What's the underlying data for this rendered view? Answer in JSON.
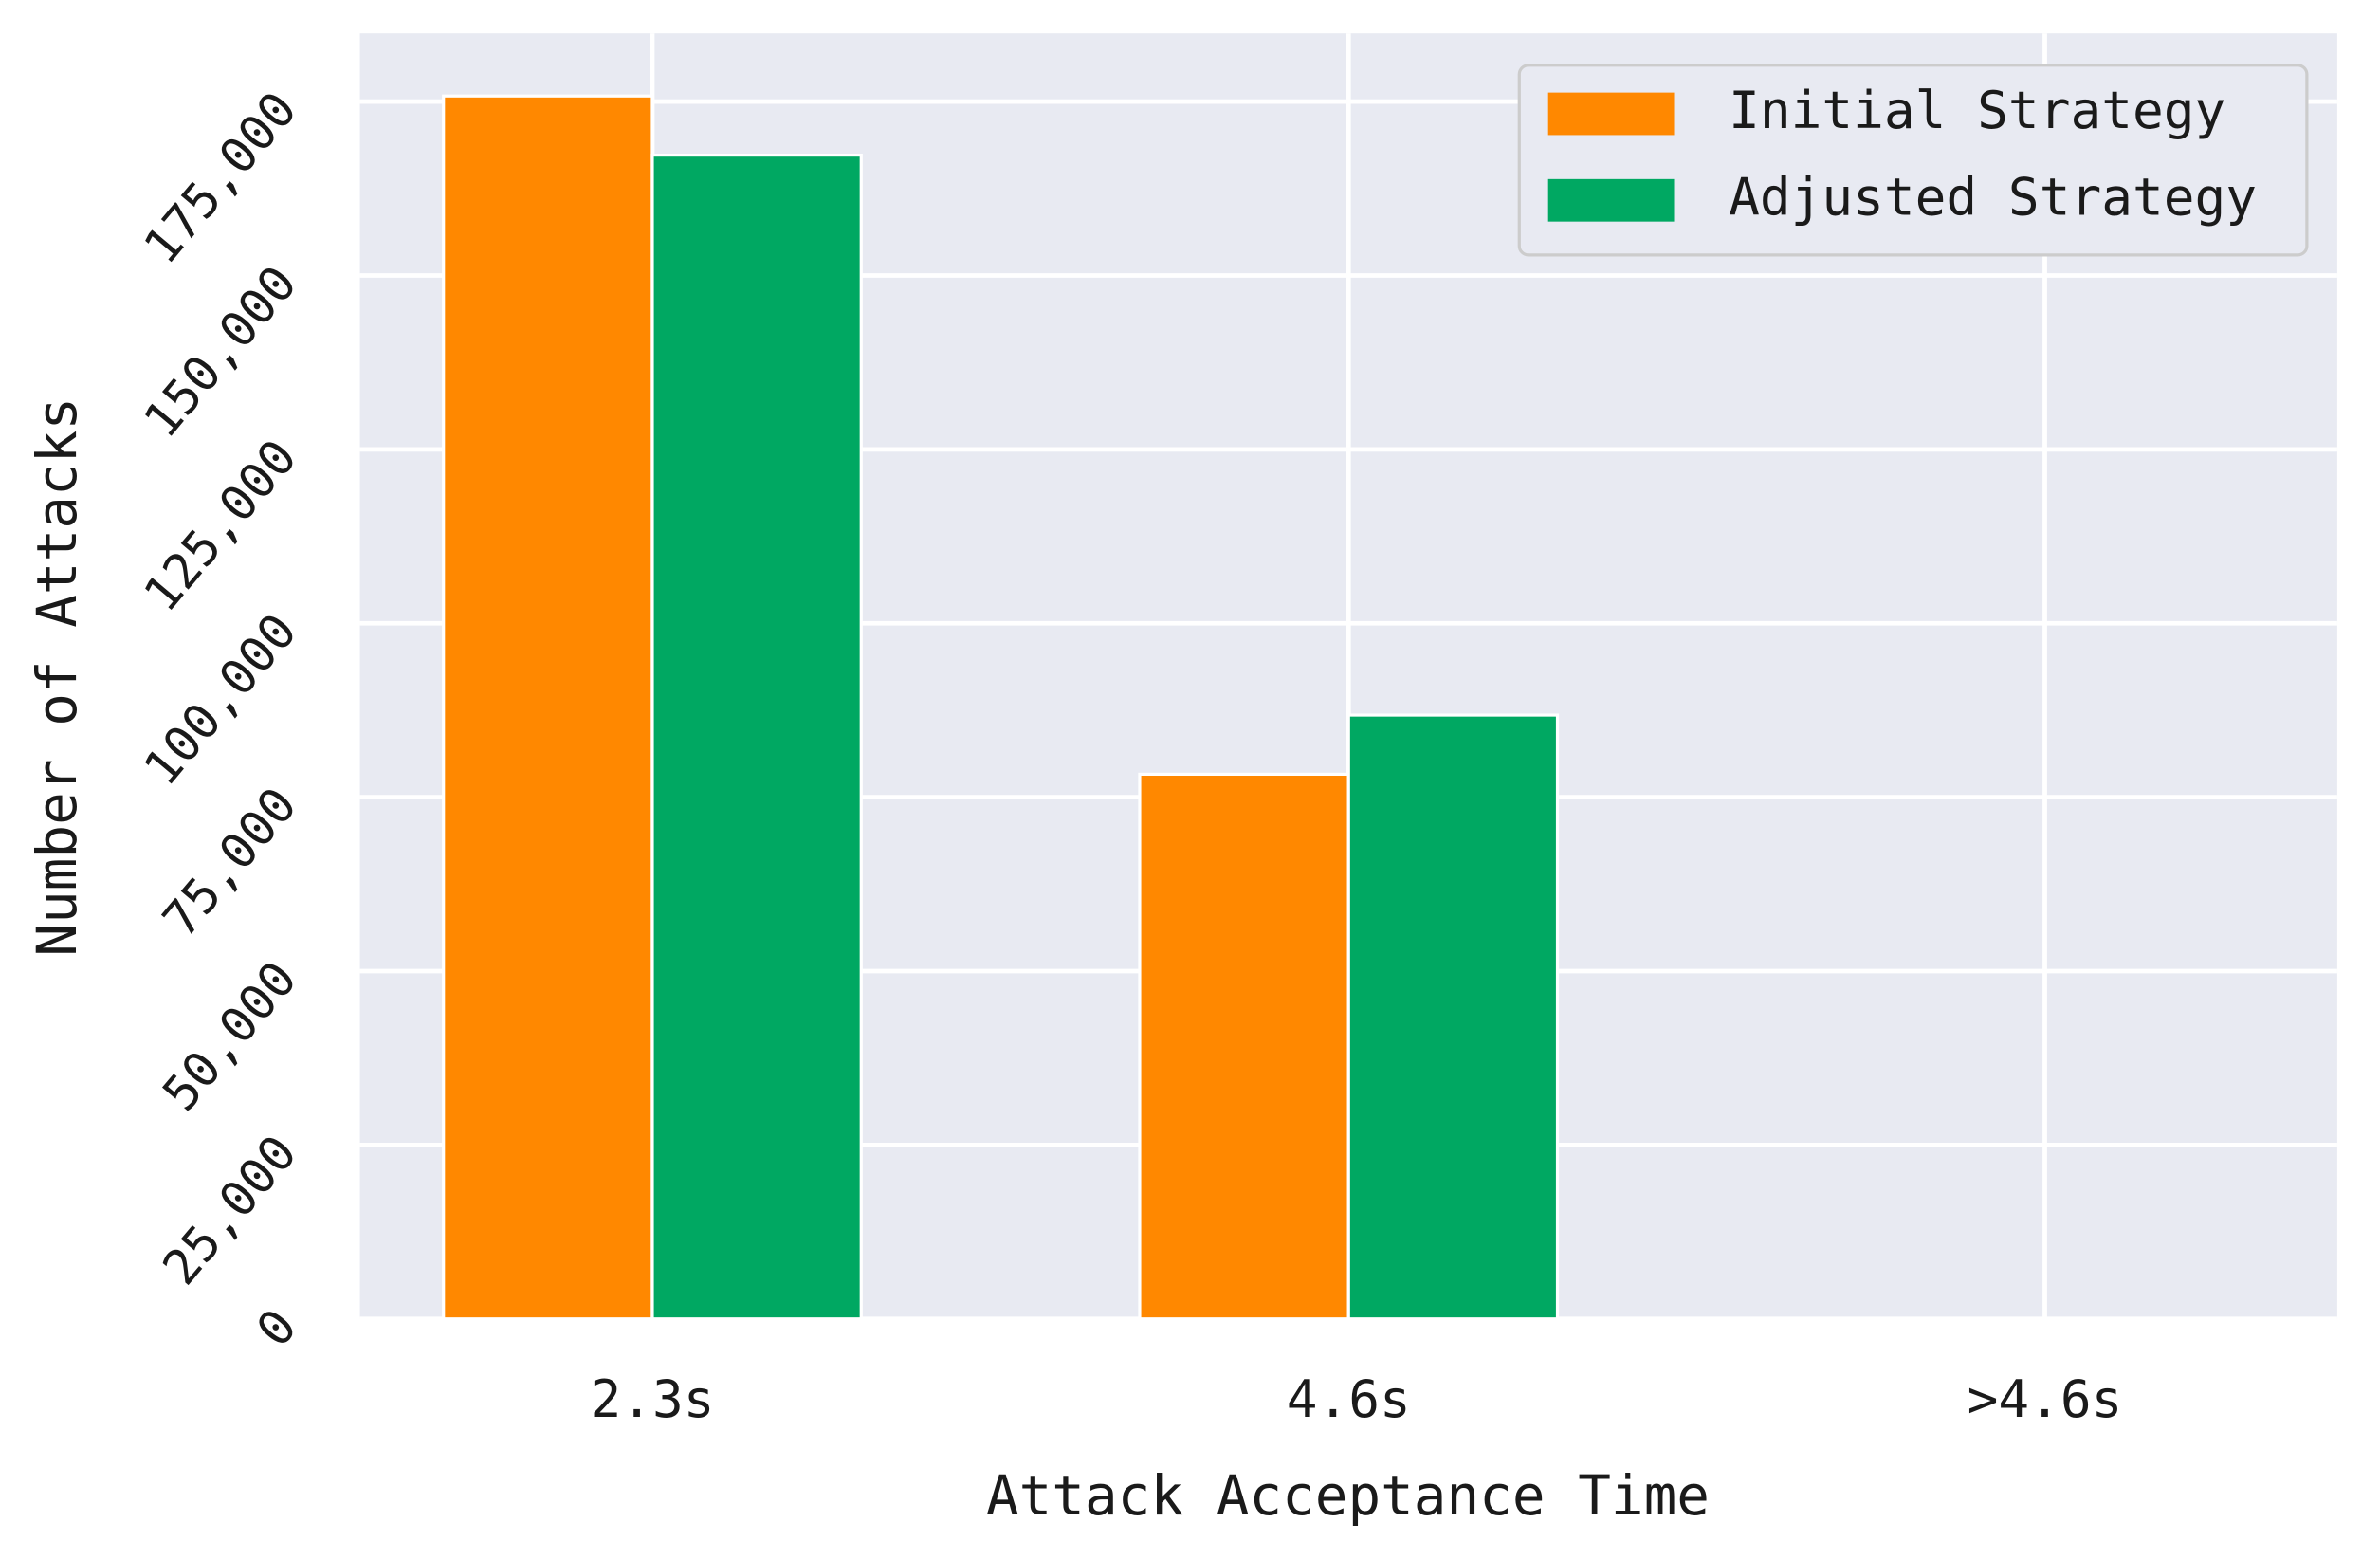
{
  "chart_data": {
    "type": "bar",
    "xlabel": "Attack Acceptance Time",
    "ylabel": "Number of Attacks",
    "categories": [
      "2.3s",
      "4.6s",
      ">4.6s"
    ],
    "series": [
      {
        "name": "Initial Strategy",
        "color": "#ff8800",
        "values": [
          175800,
          78300,
          0
        ]
      },
      {
        "name": "Adjusted Strategy",
        "color": "#00a862",
        "values": [
          167300,
          86800,
          0
        ]
      }
    ],
    "ylim": [
      0,
      184800
    ],
    "yticks": [
      0,
      {
        "value": 25000,
        "label": "25,000"
      },
      {
        "value": 50000,
        "label": "50,000"
      },
      {
        "value": 75000,
        "label": "75,000"
      },
      {
        "value": 100000,
        "label": "100,000"
      },
      {
        "value": 125000,
        "label": "125,000"
      },
      {
        "value": 150000,
        "label": "150,000"
      },
      {
        "value": 175000,
        "label": "175,000"
      }
    ],
    "grid": true,
    "legend": "upper right",
    "background": "#e8eaf2"
  }
}
